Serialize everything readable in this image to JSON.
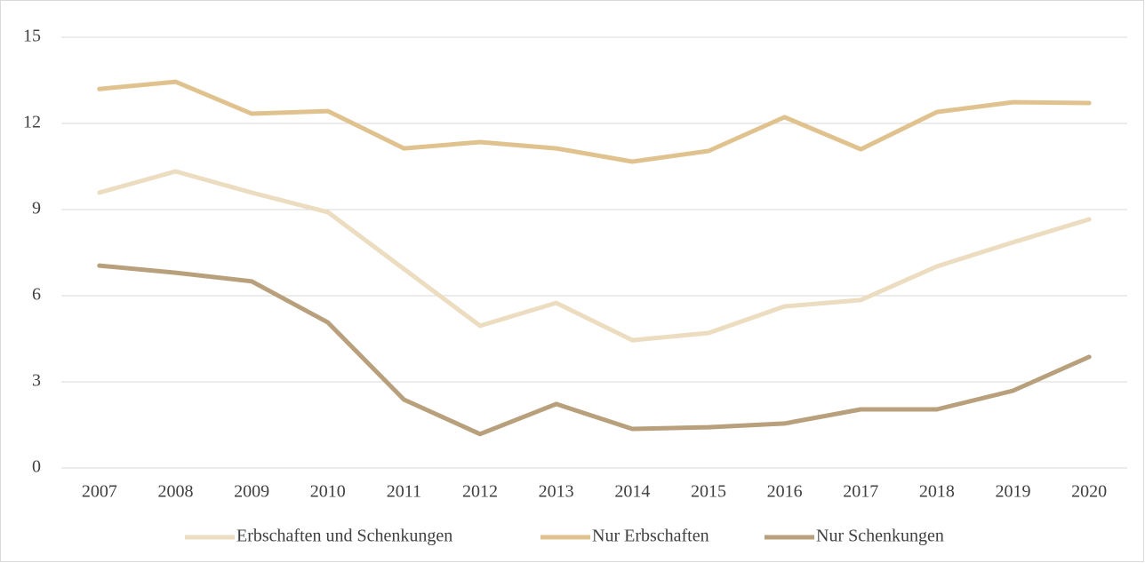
{
  "chart_data": {
    "type": "line",
    "categories": [
      "2007",
      "2008",
      "2009",
      "2010",
      "2011",
      "2012",
      "2013",
      "2014",
      "2015",
      "2016",
      "2017",
      "2018",
      "2019",
      "2020"
    ],
    "series": [
      {
        "name": "Erbschaften und Schenkungen",
        "color": "#ecdcc0",
        "values": [
          9.59,
          10.33,
          9.59,
          8.91,
          6.93,
          4.95,
          5.75,
          4.45,
          4.7,
          5.63,
          5.85,
          7.02,
          7.86,
          8.66
        ]
      },
      {
        "name": "Nur Erbschaften",
        "color": "#e0c28f",
        "values": [
          13.2,
          13.45,
          12.34,
          12.43,
          11.13,
          11.35,
          11.13,
          10.67,
          11.04,
          12.22,
          11.1,
          12.4,
          12.74,
          12.71
        ]
      },
      {
        "name": "Nur Schenkungen",
        "color": "#b9a07c",
        "values": [
          7.05,
          6.8,
          6.5,
          5.07,
          2.38,
          1.18,
          2.23,
          1.36,
          1.42,
          1.55,
          2.04,
          2.04,
          2.69,
          3.87
        ]
      }
    ],
    "ylim": [
      0,
      15
    ],
    "yticks": [
      0,
      3,
      6,
      9,
      12,
      15
    ],
    "grid": true,
    "legend": "bottom"
  }
}
